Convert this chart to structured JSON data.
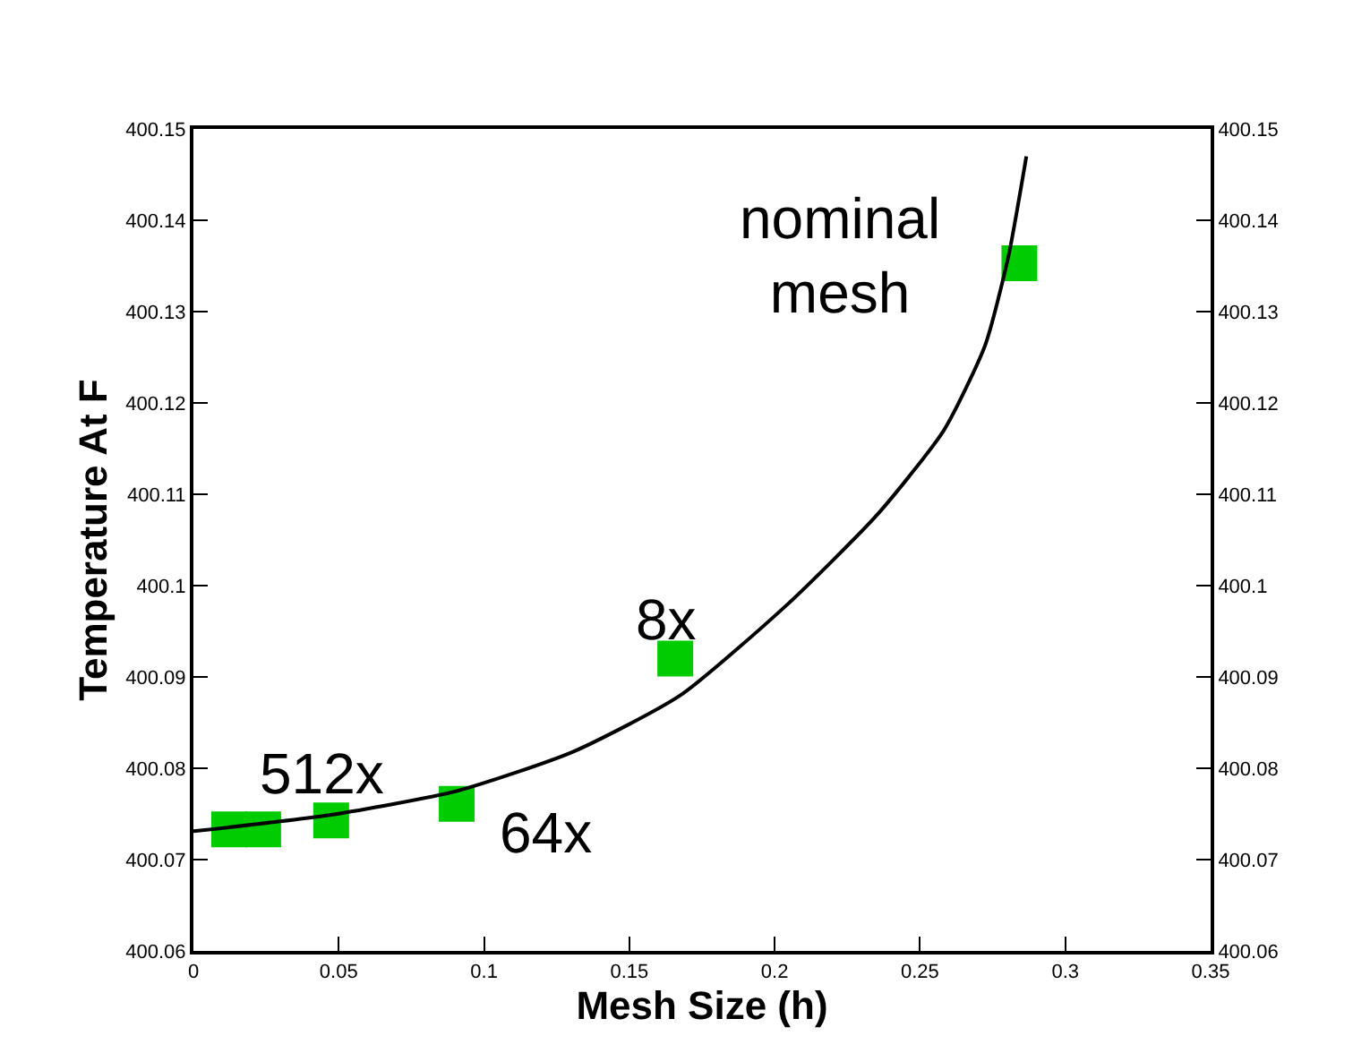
{
  "chart_data": {
    "type": "scatter",
    "xlabel": "Mesh Size (h)",
    "ylabel": "Temperature At F",
    "series": [
      {
        "type": "scatter",
        "color": "#00cc00",
        "marker": "square",
        "x": [
          0.0123,
          0.024,
          0.0474,
          0.0906,
          0.1658,
          0.2842
        ],
        "values": [
          400.0733,
          400.0733,
          400.0743,
          400.0761,
          400.092,
          400.1353
        ]
      },
      {
        "type": "line",
        "color": "#000000",
        "marker": "none",
        "line_style": "solid",
        "x": [
          0,
          0.0474,
          0.0906,
          0.1306,
          0.1676,
          0.2046,
          0.2354,
          0.2582,
          0.2724,
          0.2804,
          0.2866
        ],
        "values": [
          400.0731,
          400.0749,
          400.0775,
          400.0818,
          400.088,
          400.098,
          400.1078,
          400.117,
          400.1263,
          400.136,
          400.147
        ]
      }
    ],
    "annotations": [
      {
        "text": "512x",
        "x": 0.024,
        "y": 400.0733
      },
      {
        "text": "64x",
        "x": 0.0906,
        "y": 400.0761
      },
      {
        "text": "8x",
        "x": 0.1658,
        "y": 400.092
      },
      {
        "text": "nominal mesh",
        "x": 0.2842,
        "y": 400.1353
      }
    ],
    "xlim": [
      0,
      0.35
    ],
    "xticks": [
      0,
      0.05,
      0.1,
      0.15,
      0.2,
      0.25,
      0.3,
      0.35
    ],
    "ylim": [
      400.06,
      400.15
    ],
    "yticks": [
      {
        "value": 400.06,
        "label": "400.06"
      },
      {
        "value": 400.07,
        "label": "400.07"
      },
      {
        "value": 400.08,
        "label": "400.08"
      },
      {
        "value": 400.09,
        "label": "400.09"
      },
      {
        "value": 400.1,
        "label": "400.1"
      },
      {
        "value": 400.11,
        "label": "400.11"
      },
      {
        "value": 400.12,
        "label": "400.12"
      },
      {
        "value": 400.13,
        "label": "400.13"
      },
      {
        "value": 400.14,
        "label": "400.14"
      },
      {
        "value": 400.15,
        "label": "400.15"
      }
    ],
    "y2lim": [
      400.06,
      400.15
    ],
    "y2ticks": [
      {
        "value": 400.06,
        "label": "400.06"
      },
      {
        "value": 400.07,
        "label": "400.07"
      },
      {
        "value": 400.08,
        "label": "400.08"
      },
      {
        "value": 400.09,
        "label": "400.09"
      },
      {
        "value": 400.1,
        "label": "400.1"
      },
      {
        "value": 400.11,
        "label": "400.11"
      },
      {
        "value": 400.12,
        "label": "400.12"
      },
      {
        "value": 400.13,
        "label": "400.13"
      },
      {
        "value": 400.14,
        "label": "400.14"
      },
      {
        "value": 400.15,
        "label": "400.15"
      }
    ],
    "grid": false
  }
}
